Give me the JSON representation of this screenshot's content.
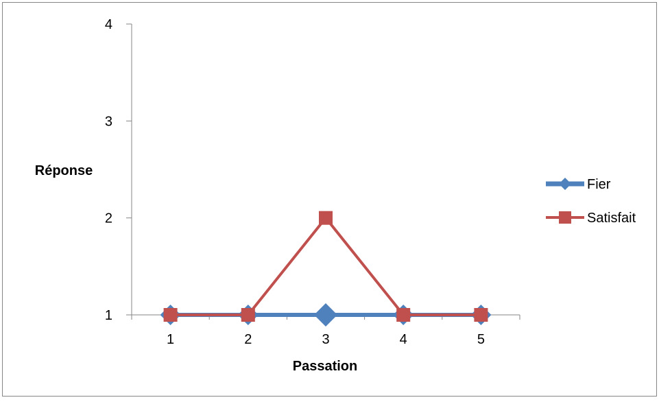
{
  "chart_data": {
    "type": "line",
    "title": "",
    "xlabel": "Passation",
    "ylabel": "Réponse",
    "categories": [
      "1",
      "2",
      "3",
      "4",
      "5"
    ],
    "ylim": [
      1,
      4
    ],
    "yticks": [
      "1",
      "2",
      "3",
      "4"
    ],
    "grid": false,
    "legend_position": "right",
    "series": [
      {
        "name": "Fier",
        "values": [
          1,
          1,
          1,
          1,
          1
        ],
        "color": "#4f81bd",
        "marker": "diamond"
      },
      {
        "name": "Satisfait",
        "values": [
          1,
          1,
          2,
          1,
          1
        ],
        "color": "#c0504d",
        "marker": "square"
      }
    ]
  }
}
